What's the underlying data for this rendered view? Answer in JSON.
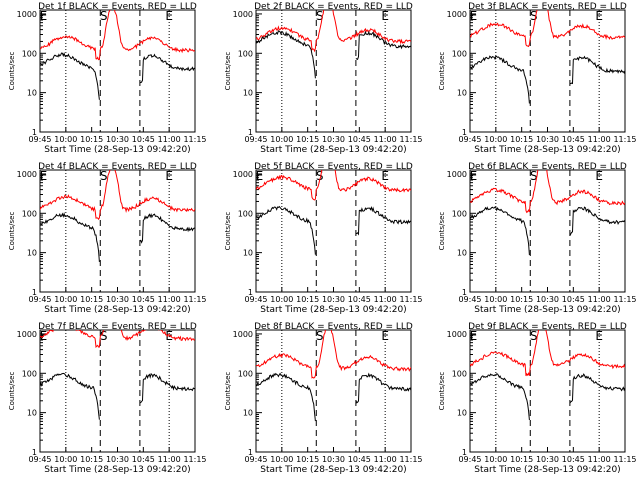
{
  "page": {
    "title_template": "BLACK = Events, RED = LLD",
    "xlabel": "Start Time (28-Sep-13 09:42:20)",
    "ylabel": "Counts/sec",
    "x_ticks": [
      "09:45",
      "10:00",
      "10:15",
      "10:30",
      "10:45",
      "11:00",
      "11:15"
    ],
    "y_ticks": [
      "1",
      "10",
      "100",
      "1000"
    ],
    "colors": {
      "events": "#000000",
      "lld": "#ff0000"
    }
  },
  "chart_data": [
    {
      "type": "line",
      "title": "Det 1f BLACK = Events, RED = LLD",
      "markers": [
        "E",
        "S",
        "E"
      ],
      "events_base": 40,
      "lld_base": 120
    },
    {
      "type": "line",
      "title": "Det 2f BLACK = Events, RED = LLD",
      "markers": [
        "",
        "S",
        "E"
      ],
      "events_base": 150,
      "lld_base": 200
    },
    {
      "type": "line",
      "title": "Det 3f BLACK = Events, RED = LLD",
      "markers": [
        "E",
        "S",
        "E"
      ],
      "events_base": 35,
      "lld_base": 250
    },
    {
      "type": "line",
      "title": "Det 4f BLACK = Events, RED = LLD",
      "markers": [
        "E",
        "S",
        "E"
      ],
      "events_base": 40,
      "lld_base": 120
    },
    {
      "type": "line",
      "title": "Det 5f BLACK = Events, RED = LLD",
      "markers": [
        "E",
        "S",
        "E"
      ],
      "events_base": 60,
      "lld_base": 380
    },
    {
      "type": "line",
      "title": "Det 6f BLACK = Events, RED = LLD",
      "markers": [
        "E",
        "S",
        "E"
      ],
      "events_base": 60,
      "lld_base": 180
    },
    {
      "type": "line",
      "title": "Det 7f BLACK = Events, RED = LLD",
      "markers": [
        "E",
        "S",
        "E"
      ],
      "events_base": 40,
      "lld_base": 750
    },
    {
      "type": "line",
      "title": "Det 8f BLACK = Events, RED = LLD",
      "markers": [
        "",
        "S",
        "E"
      ],
      "events_base": 40,
      "lld_base": 130
    },
    {
      "type": "line",
      "title": "Det 9f BLACK = Events, RED = LLD",
      "markers": [
        "E",
        "S",
        "E"
      ],
      "events_base": 40,
      "lld_base": 150
    }
  ]
}
